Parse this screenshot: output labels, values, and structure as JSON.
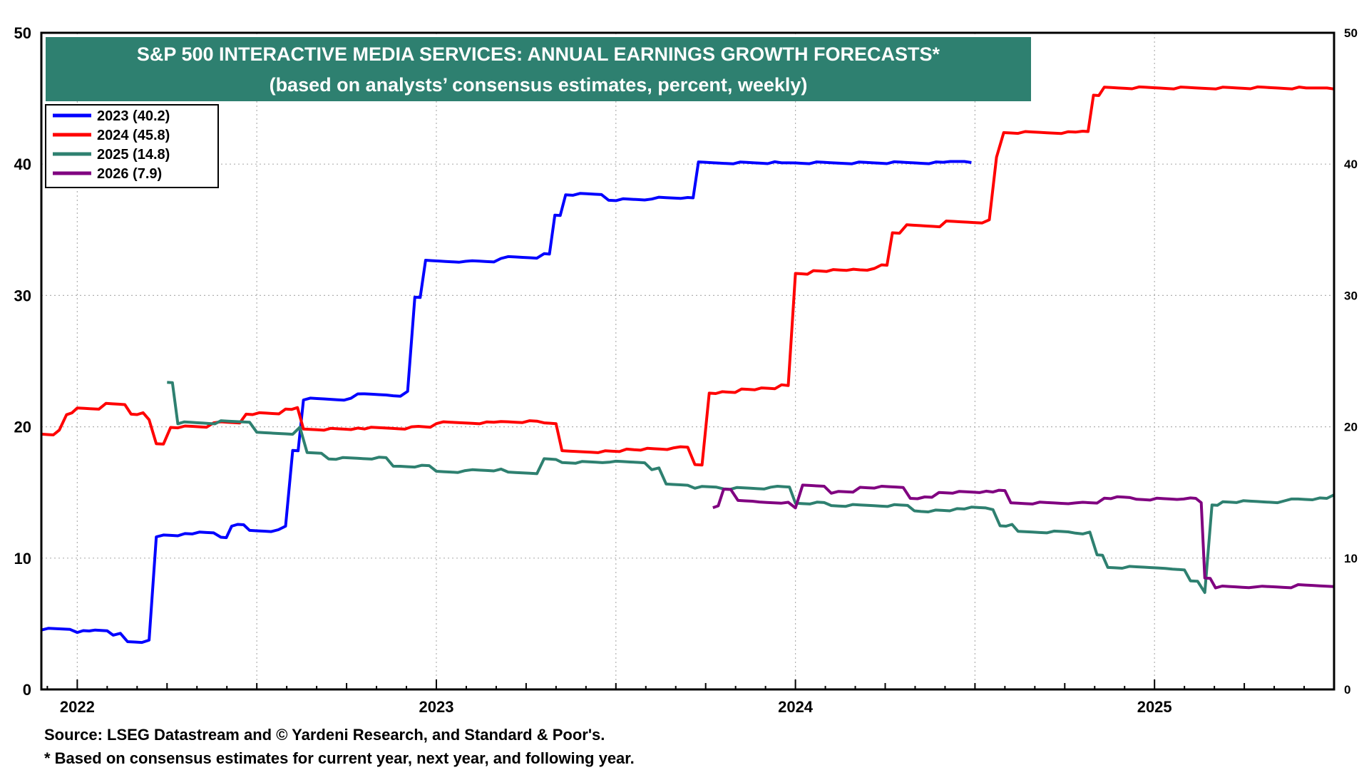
{
  "chart_data": {
    "type": "line",
    "title": "S&P 500 INTERACTIVE MEDIA SERVICES: ANNUAL EARNINGS GROWTH FORECASTS*",
    "subtitle": "(based on analysts’ consensus estimates, percent, weekly)",
    "x_axis": {
      "start": 2021.9,
      "end": 2025.5,
      "year_labels": [
        "2022",
        "2023",
        "2024",
        "2025"
      ],
      "year_positions": [
        2022.0,
        2023.0,
        2024.0,
        2025.0
      ]
    },
    "y_axis": {
      "ylim": [
        0,
        50
      ],
      "left_ticks": [
        "0",
        "10",
        "20",
        "30",
        "40",
        "50"
      ],
      "right_ticks": [
        "0",
        "10",
        "20",
        "30",
        "40",
        "50"
      ],
      "tick_values": [
        0,
        10,
        20,
        30,
        40,
        50
      ]
    },
    "grid": true,
    "legend_position": "top-left",
    "series": [
      {
        "name": "2023 (40.2)",
        "color": "#0000ff",
        "points": [
          [
            2021.9,
            4.6
          ],
          [
            2022.0,
            4.4
          ],
          [
            2022.05,
            4.5
          ],
          [
            2022.1,
            4.2
          ],
          [
            2022.14,
            3.6
          ],
          [
            2022.2,
            3.8
          ],
          [
            2022.22,
            11.7
          ],
          [
            2022.3,
            11.9
          ],
          [
            2022.4,
            11.6
          ],
          [
            2022.43,
            12.5
          ],
          [
            2022.48,
            12.1
          ],
          [
            2022.58,
            12.4
          ],
          [
            2022.6,
            18.2
          ],
          [
            2022.63,
            22.1
          ],
          [
            2022.8,
            22.5
          ],
          [
            2022.88,
            22.3
          ],
          [
            2022.92,
            22.7
          ],
          [
            2022.94,
            29.9
          ],
          [
            2022.97,
            32.6
          ],
          [
            2023.1,
            32.6
          ],
          [
            2023.18,
            32.9
          ],
          [
            2023.3,
            33.1
          ],
          [
            2023.33,
            36.1
          ],
          [
            2023.36,
            37.7
          ],
          [
            2023.48,
            37.3
          ],
          [
            2023.6,
            37.4
          ],
          [
            2023.7,
            37.5
          ],
          [
            2023.73,
            40.1
          ],
          [
            2024.0,
            40.1
          ],
          [
            2024.49,
            40.2
          ]
        ]
      },
      {
        "name": "2024 (45.8)",
        "color": "#ff0000",
        "points": [
          [
            2021.9,
            19.4
          ],
          [
            2021.95,
            19.8
          ],
          [
            2021.97,
            21.0
          ],
          [
            2022.0,
            21.4
          ],
          [
            2022.08,
            21.7
          ],
          [
            2022.15,
            21.0
          ],
          [
            2022.2,
            20.5
          ],
          [
            2022.22,
            18.7
          ],
          [
            2022.26,
            20.0
          ],
          [
            2022.4,
            20.3
          ],
          [
            2022.47,
            21.0
          ],
          [
            2022.58,
            21.4
          ],
          [
            2022.63,
            19.8
          ],
          [
            2022.8,
            19.9
          ],
          [
            2022.95,
            20.0
          ],
          [
            2023.0,
            20.3
          ],
          [
            2023.2,
            20.4
          ],
          [
            2023.3,
            20.3
          ],
          [
            2023.35,
            18.1
          ],
          [
            2023.55,
            18.3
          ],
          [
            2023.68,
            18.4
          ],
          [
            2023.72,
            17.1
          ],
          [
            2023.76,
            22.6
          ],
          [
            2023.85,
            22.9
          ],
          [
            2023.98,
            23.2
          ],
          [
            2024.0,
            31.6
          ],
          [
            2024.05,
            31.9
          ],
          [
            2024.18,
            32.0
          ],
          [
            2024.24,
            32.3
          ],
          [
            2024.27,
            34.8
          ],
          [
            2024.31,
            35.3
          ],
          [
            2024.42,
            35.6
          ],
          [
            2024.54,
            35.7
          ],
          [
            2024.56,
            40.5
          ],
          [
            2024.58,
            42.4
          ],
          [
            2024.7,
            42.4
          ],
          [
            2024.8,
            42.5
          ],
          [
            2024.83,
            45.3
          ],
          [
            2024.86,
            45.8
          ],
          [
            2025.5,
            45.8
          ]
        ]
      },
      {
        "name": "2025 (14.8)",
        "color": "#2e8070",
        "points": [
          [
            2022.25,
            23.4
          ],
          [
            2022.28,
            20.3
          ],
          [
            2022.35,
            20.3
          ],
          [
            2022.4,
            20.4
          ],
          [
            2022.5,
            19.5
          ],
          [
            2022.58,
            19.5
          ],
          [
            2022.62,
            19.9
          ],
          [
            2022.64,
            18.0
          ],
          [
            2022.7,
            17.6
          ],
          [
            2022.9,
            17.0
          ],
          [
            2023.0,
            16.6
          ],
          [
            2023.1,
            16.7
          ],
          [
            2023.2,
            16.5
          ],
          [
            2023.3,
            17.5
          ],
          [
            2023.35,
            17.3
          ],
          [
            2023.5,
            17.3
          ],
          [
            2023.6,
            16.8
          ],
          [
            2023.64,
            15.6
          ],
          [
            2023.72,
            15.4
          ],
          [
            2023.8,
            15.3
          ],
          [
            2023.95,
            15.4
          ],
          [
            2024.0,
            14.2
          ],
          [
            2024.1,
            14.0
          ],
          [
            2024.2,
            14.0
          ],
          [
            2024.35,
            13.6
          ],
          [
            2024.45,
            13.8
          ],
          [
            2024.55,
            13.7
          ],
          [
            2024.57,
            12.5
          ],
          [
            2024.62,
            12.0
          ],
          [
            2024.8,
            11.9
          ],
          [
            2024.84,
            10.2
          ],
          [
            2024.87,
            9.3
          ],
          [
            2024.95,
            9.3
          ],
          [
            2025.05,
            9.1
          ],
          [
            2025.1,
            8.3
          ],
          [
            2025.14,
            7.3
          ],
          [
            2025.16,
            14.0
          ],
          [
            2025.19,
            14.3
          ],
          [
            2025.4,
            14.5
          ],
          [
            2025.5,
            14.8
          ]
        ]
      },
      {
        "name": "2026 (7.9)",
        "color": "#800080",
        "points": [
          [
            2023.77,
            13.9
          ],
          [
            2023.8,
            15.2
          ],
          [
            2023.84,
            14.4
          ],
          [
            2023.9,
            14.2
          ],
          [
            2023.98,
            14.3
          ],
          [
            2024.0,
            13.9
          ],
          [
            2024.02,
            15.5
          ],
          [
            2024.1,
            15.0
          ],
          [
            2024.18,
            15.4
          ],
          [
            2024.28,
            15.4
          ],
          [
            2024.32,
            14.6
          ],
          [
            2024.4,
            15.0
          ],
          [
            2024.55,
            15.1
          ],
          [
            2024.6,
            14.2
          ],
          [
            2024.8,
            14.2
          ],
          [
            2024.86,
            14.6
          ],
          [
            2024.95,
            14.5
          ],
          [
            2025.1,
            14.5
          ],
          [
            2025.13,
            14.2
          ],
          [
            2025.14,
            8.5
          ],
          [
            2025.17,
            7.8
          ],
          [
            2025.3,
            7.8
          ],
          [
            2025.4,
            7.9
          ],
          [
            2025.5,
            7.9
          ]
        ]
      }
    ]
  },
  "footer": {
    "source": "Source: LSEG Datastream and © Yardeni Research, and Standard & Poor's.",
    "note": "* Based on consensus estimates for current year, next year, and following year."
  }
}
